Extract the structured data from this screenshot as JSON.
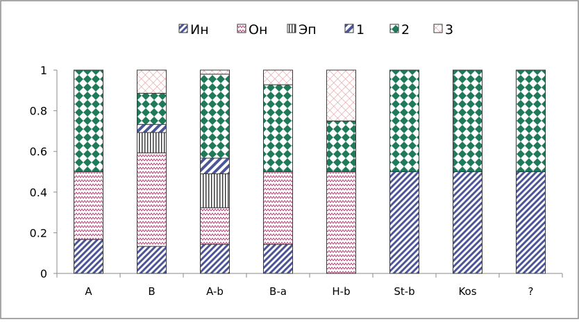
{
  "chart_data": {
    "type": "bar",
    "stacked": true,
    "categories": [
      "A",
      "B",
      "A-b",
      "B-a",
      "H-b",
      "St-b",
      "Kos",
      "?"
    ],
    "ylim": [
      0,
      1
    ],
    "yticks": [
      "0",
      "0.2",
      "0.4",
      "0.6",
      "0.8",
      "1"
    ],
    "grid": false,
    "legend_position": "top",
    "series": [
      {
        "name": "Ин",
        "pattern": "diag-hatch",
        "color": "#4b5597",
        "values": [
          0.167,
          0.133,
          0.143,
          0.143,
          0,
          0.5,
          0.5,
          0.5
        ]
      },
      {
        "name": "Он",
        "pattern": "zigzag",
        "color": "#c0407a",
        "values": [
          0.333,
          0.46,
          0.18,
          0.357,
          0.5,
          0,
          0,
          0
        ]
      },
      {
        "name": "Эп",
        "pattern": "vertical",
        "color": "#333333",
        "values": [
          0,
          0.1,
          0.167,
          0,
          0,
          0,
          0,
          0
        ]
      },
      {
        "name": "1",
        "pattern": "wide-diag",
        "color": "#4b5597",
        "values": [
          0,
          0.04,
          0.077,
          0,
          0,
          0,
          0,
          0
        ]
      },
      {
        "name": "2",
        "pattern": "diamonds",
        "color": "#1f7a5a",
        "values": [
          0.5,
          0.153,
          0.413,
          0.428,
          0.25,
          0.5,
          0.5,
          0.5
        ]
      },
      {
        "name": "3",
        "pattern": "crosshatch",
        "color": "#e59aa0",
        "values": [
          0,
          0.114,
          0.02,
          0.072,
          0.25,
          0,
          0,
          0
        ]
      }
    ]
  }
}
